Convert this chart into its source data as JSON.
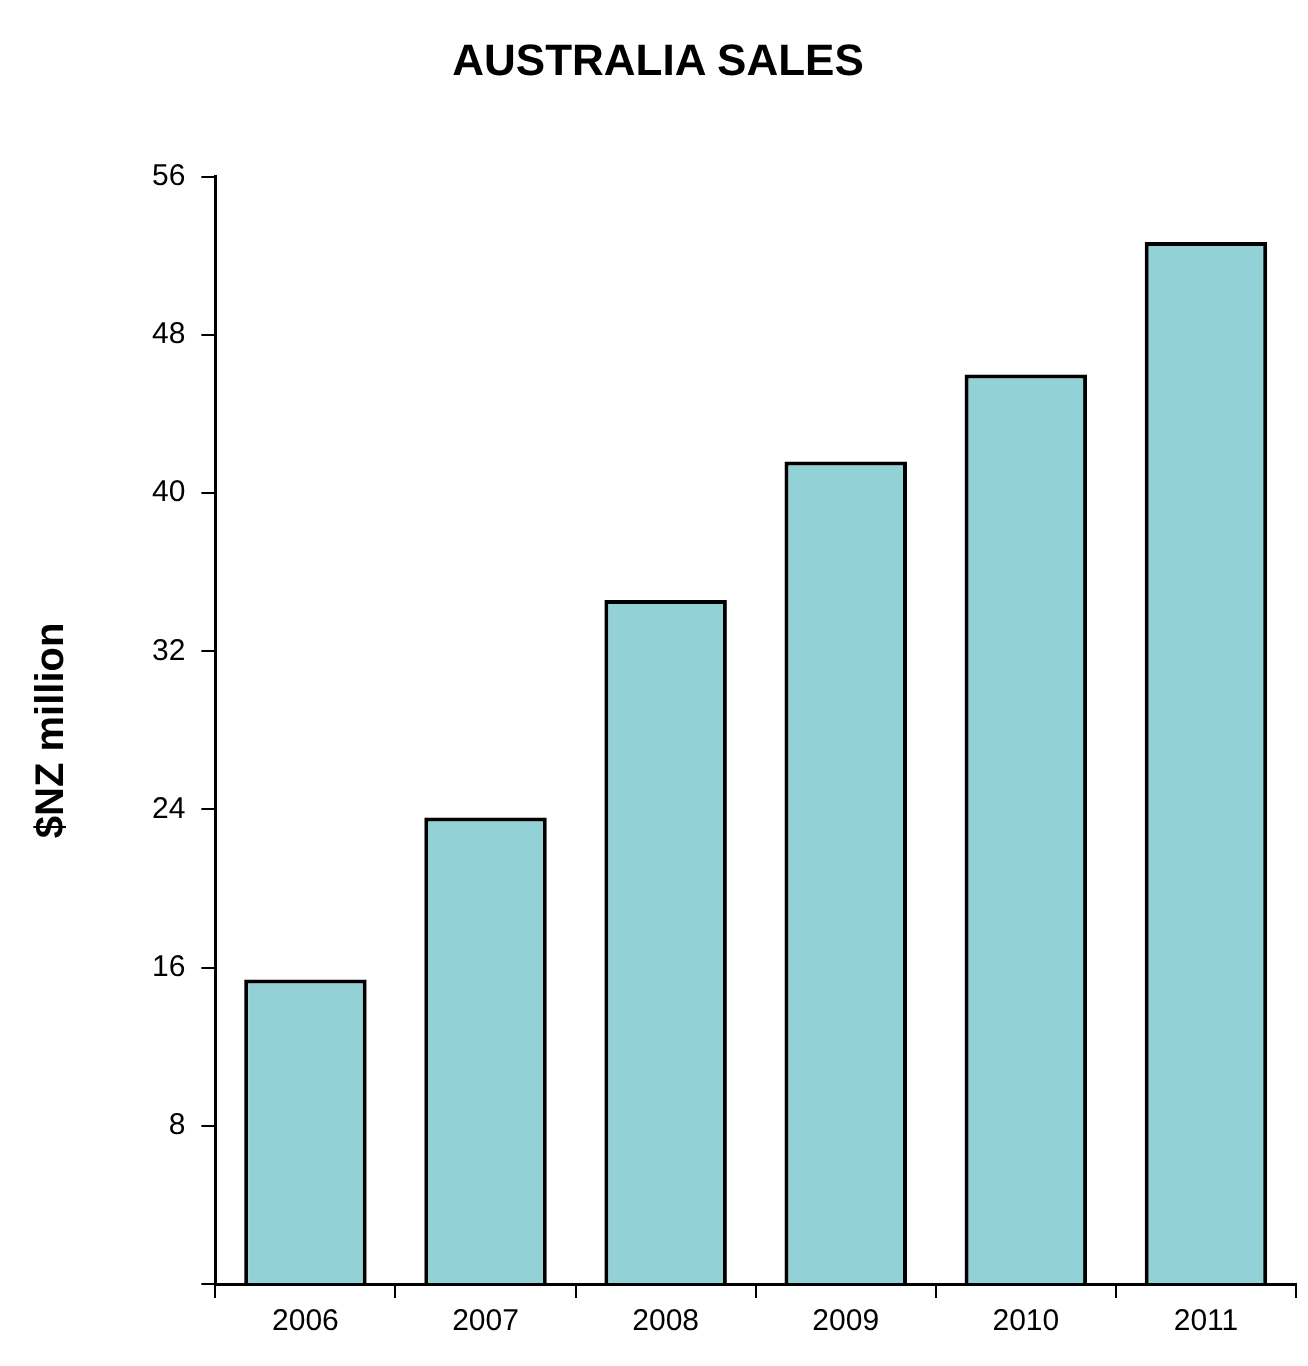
{
  "chart_data": {
    "type": "bar",
    "title": "AUSTRALIA SALES",
    "ylabel": "$NZ million",
    "categories": [
      "2006",
      "2007",
      "2008",
      "2009",
      "2010",
      "2011"
    ],
    "values": [
      15.4,
      23.6,
      34.6,
      41.6,
      46.0,
      52.7
    ],
    "color": "#92d1d6",
    "ylim": [
      0,
      56
    ],
    "yticks": [
      {
        "value": 0,
        "label": null
      },
      8,
      16,
      24,
      32,
      40,
      48,
      56
    ],
    "grid": false
  }
}
